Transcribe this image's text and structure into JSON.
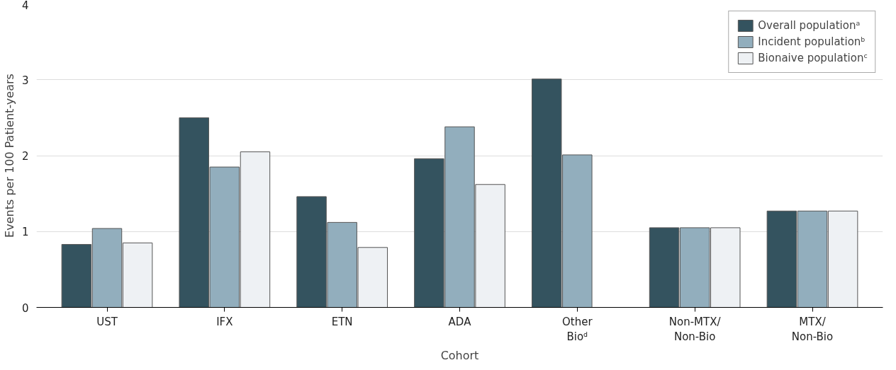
{
  "chart_data": {
    "type": "bar",
    "xlabel": "Cohort",
    "ylabel": "Events per 100 Patient-years",
    "categories": [
      "UST",
      "IFX",
      "ETN",
      "ADA",
      "Other\nBioᵈ",
      "Non-MTX/\nNon-Bio",
      "MTX/\nNon-Bio"
    ],
    "series": [
      {
        "name": "Overall populationᵃ",
        "color": "#34535f",
        "values": [
          0.83,
          2.5,
          1.46,
          1.96,
          3.01,
          1.05,
          1.27
        ]
      },
      {
        "name": "Incident populationᵇ",
        "color": "#92aebd",
        "values": [
          1.04,
          1.85,
          1.12,
          2.38,
          2.01,
          1.05,
          1.27
        ]
      },
      {
        "name": "Bionaive populationᶜ",
        "color": "#eef1f4",
        "values": [
          0.85,
          2.05,
          0.79,
          1.62,
          null,
          1.05,
          1.27
        ]
      }
    ],
    "ylim": [
      0,
      4
    ],
    "yticks": [
      0,
      1,
      2,
      3,
      4
    ],
    "grid": "y",
    "legend": "top right"
  }
}
